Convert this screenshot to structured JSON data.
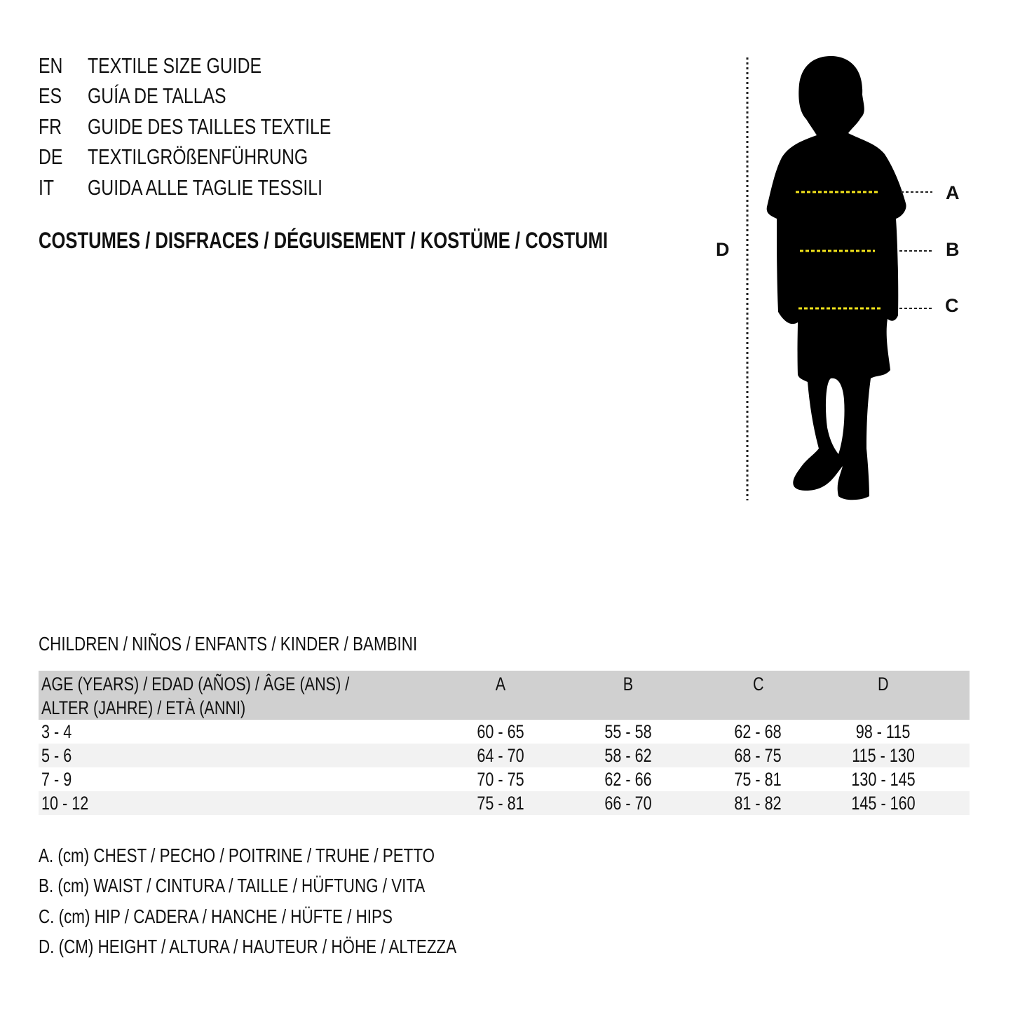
{
  "guide_titles": [
    {
      "code": "EN",
      "title": "TEXTILE SIZE GUIDE"
    },
    {
      "code": "ES",
      "title": "GUÍA DE TALLAS"
    },
    {
      "code": "FR",
      "title": "GUIDE DES TAILLES TEXTILE"
    },
    {
      "code": "DE",
      "title": "TEXTILGRÖßENFÜHRUNG"
    },
    {
      "code": "IT",
      "title": "GUIDA ALLE TAGLIE TESSILI"
    }
  ],
  "category_heading": "COSTUMES / DISFRACES / DÉGUISEMENT / KOSTÜME / COSTUMI",
  "figure": {
    "labels": {
      "a": "A",
      "b": "B",
      "c": "C",
      "d": "D"
    },
    "silhouette_color": "#000000",
    "measure_line_color": "#f5e51b"
  },
  "table": {
    "section_title": "CHILDREN / NIÑOS / ENFANTS / KINDER / BAMBINI",
    "header": {
      "age_line1": "AGE (YEARS) / EDAD (AÑOS) / ÂGE (ANS) /",
      "age_line2": "ALTER (JAHRE) / ETÀ (ANNI)",
      "cols": [
        "A",
        "B",
        "C",
        "D"
      ]
    },
    "rows": [
      {
        "age": "3 - 4",
        "values": [
          "60 - 65",
          "55 - 58",
          "62 - 68",
          "98 - 115"
        ]
      },
      {
        "age": "5 - 6",
        "values": [
          "64 - 70",
          "58 - 62",
          "68 - 75",
          "115 - 130"
        ]
      },
      {
        "age": "7 - 9",
        "values": [
          "70 - 75",
          "62 - 66",
          "75 - 81",
          "130 - 145"
        ]
      },
      {
        "age": "10 - 12",
        "values": [
          "75 - 81",
          "66 - 70",
          "81 - 82",
          "145 - 160"
        ]
      }
    ],
    "header_bg": "#d0d0d0",
    "alt_row_bg": "#f2f2f2"
  },
  "legend": [
    "A. (cm) CHEST / PECHO / POITRINE / TRUHE / PETTO",
    "B. (cm) WAIST / CINTURA / TAILLE / HÜFTUNG / VITA",
    "C. (cm) HIP / CADERA / HANCHE / HÜFTE / HIPS",
    "D. (CM) HEIGHT / ALTURA / HAUTEUR / HÖHE / ALTEZZA"
  ]
}
